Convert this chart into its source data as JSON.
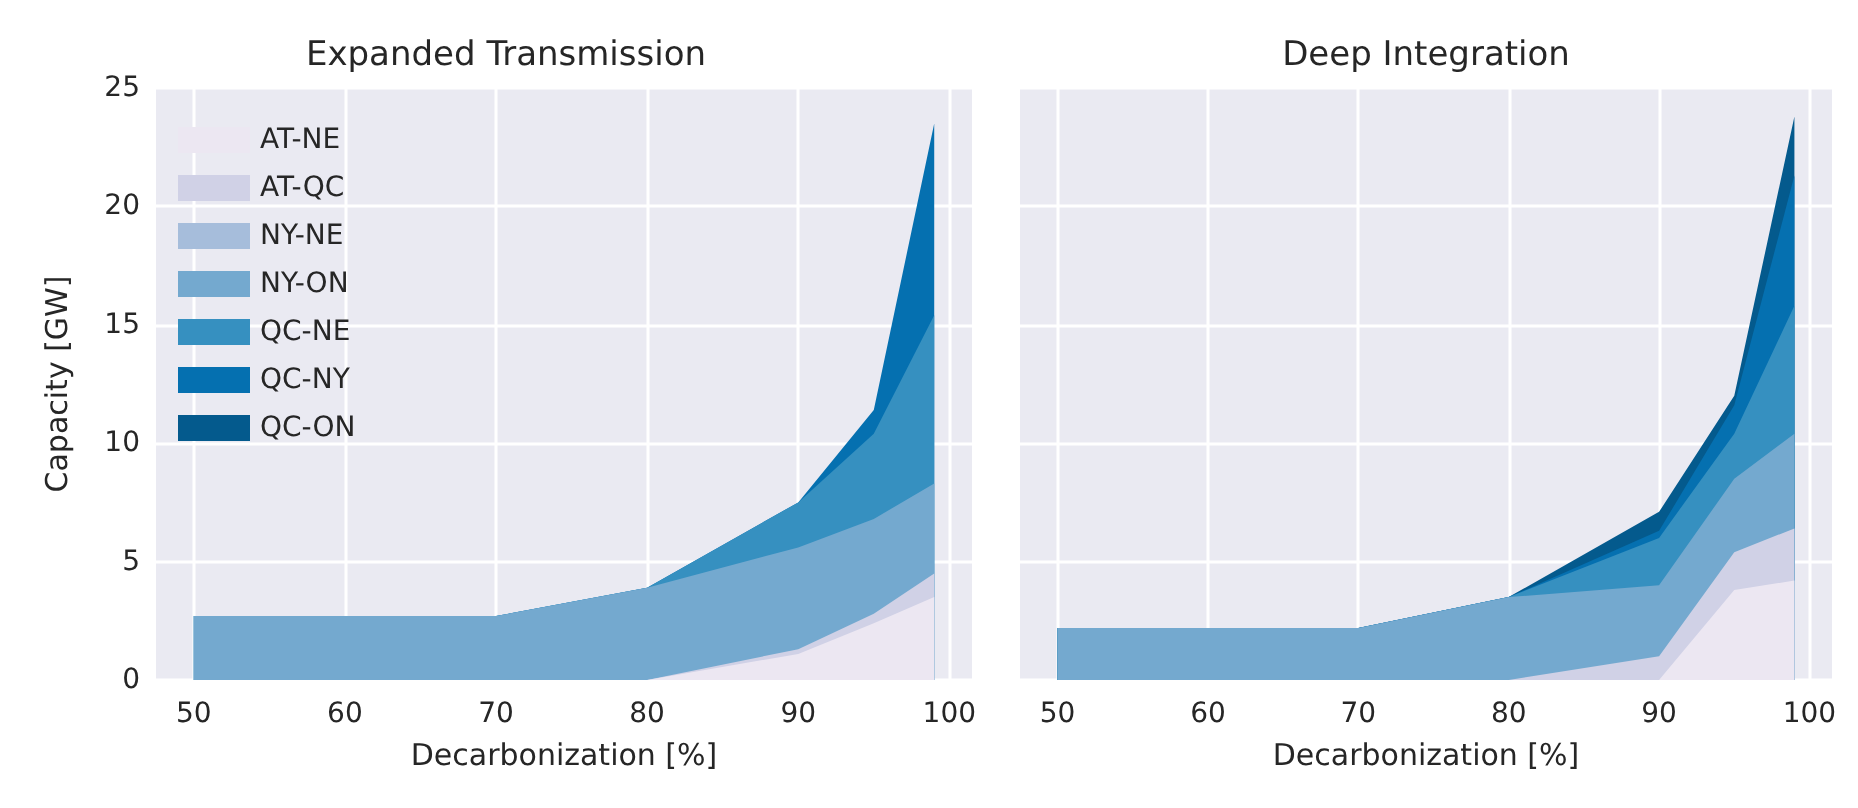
{
  "chart_data": [
    {
      "type": "area",
      "title": "Expanded Transmission",
      "xlabel": "Decarbonization [%]",
      "ylabel": "Capacity [GW]",
      "x": [
        50,
        60,
        70,
        80,
        90,
        95,
        99
      ],
      "stacked": true,
      "grid": true,
      "legend": "top left",
      "xlim": [
        47.5,
        101.5
      ],
      "xticks": [
        50,
        60,
        70,
        80,
        90,
        100
      ],
      "ylim": [
        0,
        25
      ],
      "yticks": [
        0,
        5,
        10,
        15,
        20,
        25
      ],
      "series": [
        {
          "name": "AT-NE",
          "color": "#ece7f2",
          "values": [
            0,
            0,
            0,
            0,
            1.1,
            2.4,
            3.5
          ]
        },
        {
          "name": "AT-QC",
          "color": "#d0d1e6",
          "values": [
            0,
            0,
            0,
            0,
            0.2,
            0.4,
            1.0
          ]
        },
        {
          "name": "NY-NE",
          "color": "#a6bddb",
          "values": [
            null,
            null,
            null,
            null,
            null,
            null,
            null
          ]
        },
        {
          "name": "NY-ON",
          "color": "#74a9cf",
          "values": [
            2.7,
            2.7,
            2.7,
            3.9,
            4.3,
            4.0,
            3.8
          ]
        },
        {
          "name": "QC-NE",
          "color": "#3690c0",
          "values": [
            0,
            0,
            0,
            0,
            1.9,
            3.6,
            7.1
          ]
        },
        {
          "name": "QC-NY",
          "color": "#0570b0",
          "values": [
            0,
            0,
            0,
            0,
            0,
            1.0,
            8.1
          ]
        },
        {
          "name": "QC-ON",
          "color": "#045a8d",
          "values": [
            null,
            null,
            null,
            null,
            null,
            null,
            null
          ]
        }
      ]
    },
    {
      "type": "area",
      "title": "Deep Integration",
      "xlabel": "Decarbonization [%]",
      "x": [
        50,
        60,
        70,
        80,
        90,
        95,
        99
      ],
      "stacked": true,
      "grid": true,
      "tick_labels": "x",
      "xlim": [
        47.5,
        101.5
      ],
      "xticks": [
        50,
        60,
        70,
        80,
        90,
        100
      ],
      "ylim": [
        0,
        25
      ],
      "yticks": [
        0,
        5,
        10,
        15,
        20,
        25
      ],
      "series": [
        {
          "color": "#ece7f2",
          "values": [
            0,
            0,
            0,
            0,
            0,
            3.8,
            4.2
          ]
        },
        {
          "color": "#d0d1e6",
          "values": [
            0,
            0,
            0,
            0,
            1.0,
            1.6,
            2.2
          ]
        },
        {
          "color": "#a6bddb",
          "values": [
            null,
            null,
            null,
            null,
            null,
            null,
            null
          ]
        },
        {
          "color": "#74a9cf",
          "values": [
            2.2,
            2.2,
            2.2,
            3.5,
            3.0,
            3.1,
            4.0
          ]
        },
        {
          "color": "#3690c0",
          "values": [
            0,
            0,
            0,
            0,
            2.0,
            1.9,
            5.4
          ]
        },
        {
          "color": "#0570b0",
          "values": [
            0,
            0,
            0,
            0,
            0.3,
            1.2,
            5.5
          ]
        },
        {
          "color": "#045a8d",
          "values": [
            0,
            0,
            0,
            0,
            0.8,
            0.4,
            2.5
          ]
        }
      ]
    }
  ]
}
